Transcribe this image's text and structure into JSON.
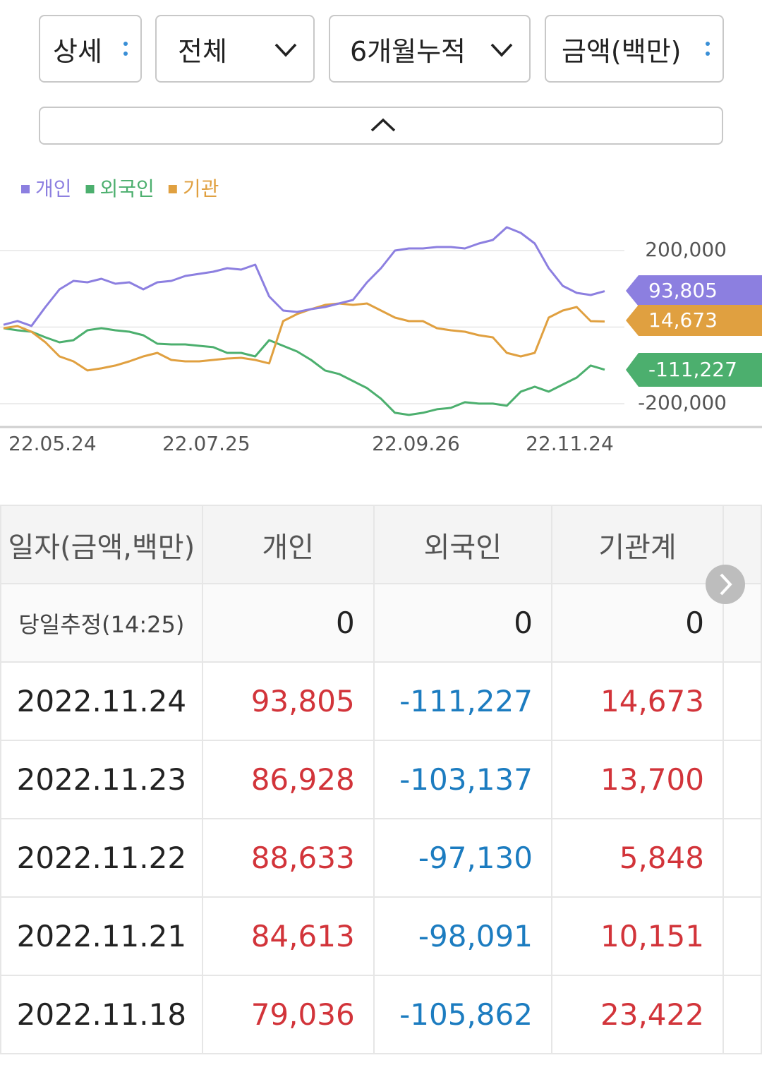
{
  "controls": [
    "상세",
    "전체",
    "6개월누적",
    "금액(백만)"
  ],
  "chart_data": {
    "type": "line",
    "categories": [
      "22.05.24",
      null,
      null,
      null,
      null,
      null,
      null,
      null,
      null,
      null,
      null,
      "22.07.25",
      null,
      null,
      null,
      null,
      null,
      null,
      null,
      null,
      null,
      null,
      null,
      null,
      null,
      null,
      "22.09.26",
      null,
      null,
      null,
      null,
      null,
      null,
      null,
      null,
      null,
      null,
      "22.11.24",
      null,
      null,
      null,
      null,
      null,
      null
    ],
    "series": [
      {
        "name": "개인",
        "color": "#8c7fe0",
        "values": [
          6000,
          16000,
          3000,
          52500,
          98600,
          120700,
          117000,
          126200,
          113300,
          117000,
          98600,
          117000,
          120700,
          133600,
          139100,
          144700,
          153900,
          150200,
          163100,
          80200,
          43300,
          39600,
          47000,
          52500,
          61700,
          71000,
          117000,
          153900,
          200000,
          205500,
          205500,
          209200,
          209200,
          205500,
          218400,
          227600,
          260800,
          246000,
          218400,
          153900,
          107800,
          89400,
          83900,
          93805
        ]
      },
      {
        "name": "외국인",
        "color": "#4caf6e",
        "values": [
          -2800,
          -8300,
          -12000,
          -26700,
          -39600,
          -34100,
          -8300,
          -2800,
          -8300,
          -12000,
          -21200,
          -43300,
          -45200,
          -45200,
          -48900,
          -52500,
          -67300,
          -67300,
          -76500,
          -34100,
          -48900,
          -63600,
          -85700,
          -113300,
          -122500,
          -140900,
          -159400,
          -187000,
          -223800,
          -229400,
          -223800,
          -214600,
          -210900,
          -196200,
          -199900,
          -199900,
          -205400,
          -168600,
          -155700,
          -168600,
          -150200,
          -131800,
          -100400,
          -111227
        ]
      },
      {
        "name": "기관",
        "color": "#e0a040",
        "values": [
          -2800,
          2800,
          -12000,
          -39600,
          -76500,
          -89400,
          -113300,
          -107800,
          -100400,
          -89400,
          -76500,
          -67300,
          -85700,
          -89400,
          -89400,
          -85700,
          -82000,
          -80200,
          -85700,
          -94900,
          15700,
          34100,
          47000,
          58100,
          61700,
          58100,
          61700,
          43300,
          24900,
          15700,
          15700,
          -2800,
          -8300,
          -12000,
          -21200,
          -26700,
          -67300,
          -76500,
          -67300,
          24900,
          43300,
          52500,
          15700,
          14673
        ]
      }
    ],
    "ylim": [
      -260000,
      300000
    ],
    "yticks": [
      {
        "value": 200000,
        "label": "200,000"
      },
      {
        "value": -200000,
        "label": "-200,000"
      }
    ],
    "grid": true,
    "zero_line": true
  },
  "table": {
    "header": [
      "일자(금액,백만)",
      "개인",
      "외국인",
      "기관계"
    ],
    "rows": [
      [
        "당일추정(14:25)",
        "0",
        "0",
        "0"
      ],
      [
        "2022.11.24",
        "93,805",
        "-111,227",
        "14,673"
      ],
      [
        "2022.11.23",
        "86,928",
        "-103,137",
        "13,700"
      ],
      [
        "2022.11.22",
        "88,633",
        "-97,130",
        "5,848"
      ],
      [
        "2022.11.21",
        "84,613",
        "-98,091",
        "10,151"
      ],
      [
        "2022.11.18",
        "79,036",
        "-105,862",
        "23,422"
      ]
    ]
  }
}
